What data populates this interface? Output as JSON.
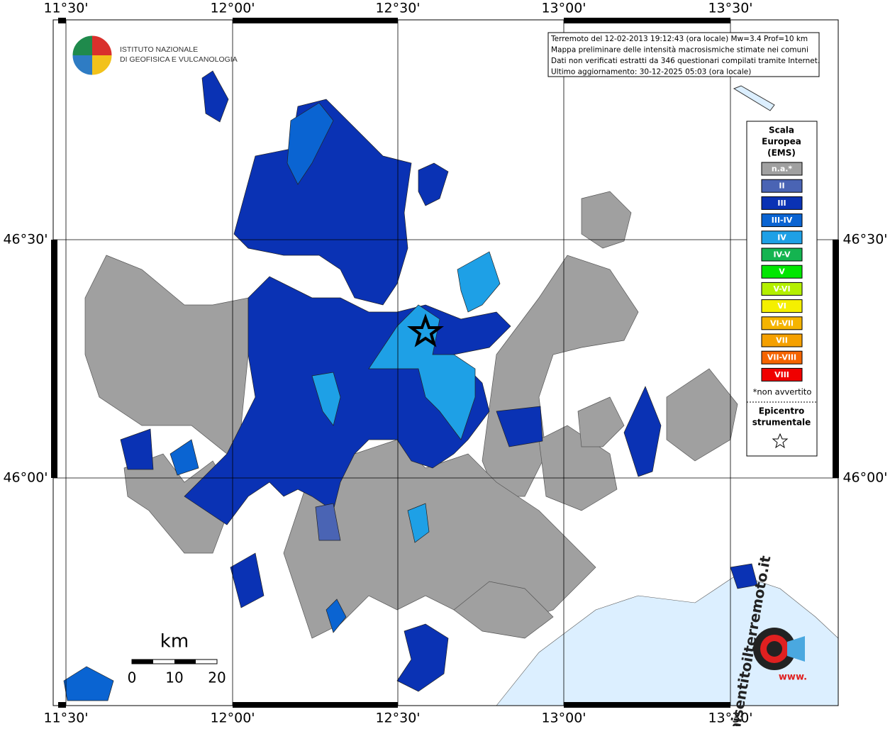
{
  "map": {
    "logo": [
      "ISTITUTO NAZIONALE",
      "DI GEOFISICA E VULCANOLOGIA"
    ],
    "info_box": [
      "Terremoto del 12-02-2013 19:12:43 (ora locale) Mw=3.4 Prof=10 km",
      "Mappa preliminare delle intensità macrosismiche stimate nei comuni",
      "Dati non verificati estratti da 346 questionari compilati tramite Internet.",
      "Ultimo aggiornamento: 30-12-2025 05:03 (ora locale)"
    ],
    "lon_labels": [
      "11°30'",
      "12°00'",
      "12°30'",
      "13°00'",
      "13°30'"
    ],
    "lat_labels": [
      "46°30'",
      "46°00'"
    ],
    "legend": {
      "title": [
        "Scala",
        "Europea",
        "(EMS)"
      ],
      "items": [
        {
          "label": "n.a.*",
          "color": "#a0a0a0"
        },
        {
          "label": "II",
          "color": "#4a64b4"
        },
        {
          "label": "III",
          "color": "#0a32b4"
        },
        {
          "label": "III-IV",
          "color": "#0a64d2"
        },
        {
          "label": "IV",
          "color": "#1ea0e6"
        },
        {
          "label": "IV-V",
          "color": "#14b450"
        },
        {
          "label": "V",
          "color": "#00e600"
        },
        {
          "label": "V-VI",
          "color": "#b4f000"
        },
        {
          "label": "VI",
          "color": "#f5f000"
        },
        {
          "label": "VI-VII",
          "color": "#f5b400"
        },
        {
          "label": "VII",
          "color": "#f5a000"
        },
        {
          "label": "VII-VIII",
          "color": "#f56400"
        },
        {
          "label": "VIII",
          "color": "#f00000"
        }
      ],
      "note": "*non avvertito",
      "epicenter": [
        "Epicentro",
        "strumentale"
      ]
    },
    "scale_bar": {
      "unit": "km",
      "labels": [
        "0",
        "10",
        "20"
      ]
    },
    "watermark": [
      "haisentitoilterremoto.it",
      "www."
    ]
  }
}
